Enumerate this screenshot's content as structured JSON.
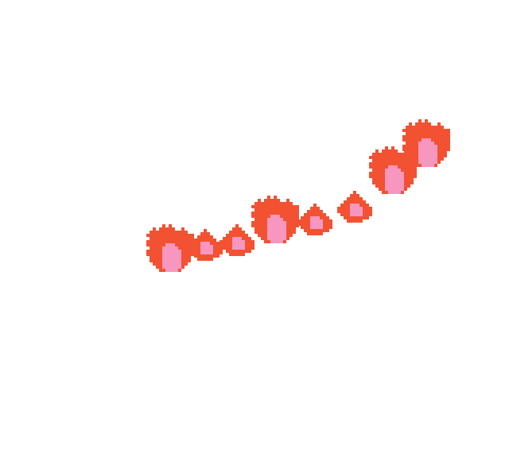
{
  "scene": {
    "background": "#ffffff"
  },
  "colors": {
    "flame_outer": "#f25232",
    "flame_inner": "#f797bf"
  },
  "sprites": [
    {
      "name": "large-flame-sprite",
      "icon": "flame-icon",
      "size": "large"
    },
    {
      "name": "small-flame-sprite",
      "icon": "flame-icon",
      "size": "small"
    }
  ],
  "flames": [
    {
      "name": "flame-1",
      "size": "large"
    },
    {
      "name": "flame-2",
      "size": "small"
    },
    {
      "name": "flame-3",
      "size": "small"
    },
    {
      "name": "flame-4",
      "size": "large"
    },
    {
      "name": "flame-5",
      "size": "small"
    },
    {
      "name": "flame-6",
      "size": "small"
    },
    {
      "name": "flame-7",
      "size": "large"
    },
    {
      "name": "flame-8",
      "size": "large"
    }
  ]
}
